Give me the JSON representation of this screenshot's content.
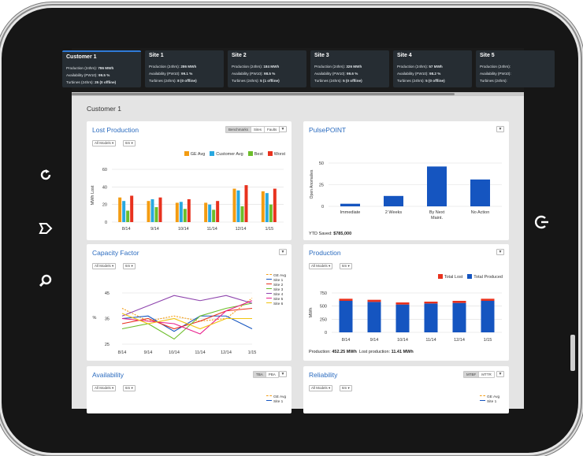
{
  "sites": [
    {
      "name": "Customer 1",
      "production": "786 MWh",
      "availability": "99.5 %",
      "turbines": "25 (0 offline)"
    },
    {
      "name": "Site 1",
      "production": "286 MWh",
      "availability": "99.1 %",
      "turbines": "8 (0 offline)"
    },
    {
      "name": "Site 2",
      "production": "184 MWh",
      "availability": "98.5 %",
      "turbines": "5 (1 offline)"
    },
    {
      "name": "Site 3",
      "production": "326 MWh",
      "availability": "99.6 %",
      "turbines": "5 (0 offline)"
    },
    {
      "name": "Site 4",
      "production": "57 MWh",
      "availability": "98.2 %",
      "turbines": "5 (0 offline)"
    },
    {
      "name": "Site 5",
      "production": "",
      "availability": "",
      "turbines": ""
    }
  ],
  "site_labels": {
    "production": "Production (24hrs):",
    "availability": "Availability (PW10):",
    "turbines": "Turbines (24hrs):"
  },
  "page_title": "Customer 1",
  "lost_production": {
    "title": "Lost Production",
    "tabs": [
      "Benchmarks",
      "Sites",
      "Faults"
    ],
    "filter_models": "All Models",
    "filter_period": "6m",
    "ylabel": "MWh Lost",
    "legend": [
      "GE Avg",
      "Customer Avg",
      "Best",
      "Worst"
    ]
  },
  "pulsepoint": {
    "title": "PulsePOINT",
    "ylabel": "Open Anomalies",
    "footer_label": "YTD Saved:",
    "footer_value": "$785,000"
  },
  "capacity_factor": {
    "title": "Capacity Factor",
    "filter_models": "All Models",
    "filter_period": "6m",
    "ylabel": "%",
    "legend": [
      "GE Avg",
      "Site 1",
      "Site 2",
      "Site 3",
      "Site 4",
      "Site 5",
      "Site 6"
    ]
  },
  "production": {
    "title": "Production",
    "filter_models": "All Models",
    "filter_period": "6m",
    "ylabel": "MWh",
    "legend": [
      "Total Lost",
      "Total Produced"
    ],
    "footer_prod_label": "Production:",
    "footer_prod_value": "452.25 MWh",
    "footer_lost_label": "Lost production:",
    "footer_lost_value": "11.41 MWh"
  },
  "availability": {
    "title": "Availability",
    "tabs": [
      "TBA",
      "PBA"
    ],
    "filter_models": "All Models",
    "filter_period": "6m",
    "legend": [
      "GE Avg",
      "Site 1"
    ]
  },
  "reliability": {
    "title": "Reliability",
    "tabs": [
      "MTBF",
      "MTTR"
    ],
    "filter_models": "All Models",
    "filter_period": "6m",
    "legend": [
      "GE Avg",
      "Site 1"
    ]
  },
  "colors": {
    "ge_avg": "#f39c12",
    "customer_avg": "#29a8e0",
    "best": "#6cbd2a",
    "worst": "#e8321e",
    "produced": "#1555c0",
    "lost": "#e8321e",
    "title_blue": "#2a6bbf"
  },
  "chart_data": [
    {
      "type": "bar",
      "title": "Lost Production",
      "categories": [
        "8/14",
        "9/14",
        "10/14",
        "11/14",
        "12/14",
        "1/15"
      ],
      "series": [
        {
          "name": "GE Avg",
          "values": [
            28,
            24,
            22,
            22,
            38,
            35
          ]
        },
        {
          "name": "Customer Avg",
          "values": [
            24,
            26,
            23,
            20,
            36,
            33
          ]
        },
        {
          "name": "Best",
          "values": [
            13,
            17,
            15,
            14,
            18,
            20
          ]
        },
        {
          "name": "Worst",
          "values": [
            30,
            28,
            26,
            24,
            42,
            38
          ]
        }
      ],
      "ylabel": "MWh Lost",
      "ylim": [
        0,
        60
      ],
      "yticks": [
        0,
        20,
        40,
        60
      ],
      "legend_position": "top-right"
    },
    {
      "type": "bar",
      "title": "PulsePOINT",
      "categories": [
        "Immediate",
        "2 Weeks",
        "By Next Maint.",
        "No Action"
      ],
      "values": [
        3,
        12,
        46,
        31
      ],
      "ylabel": "Open Anomalies",
      "ylim": [
        0,
        50
      ],
      "yticks": [
        0,
        25,
        50
      ]
    },
    {
      "type": "line",
      "title": "Capacity Factor",
      "x": [
        "8/14",
        "9/14",
        "10/14",
        "11/14",
        "12/14",
        "1/15"
      ],
      "series": [
        {
          "name": "GE Avg",
          "values": [
            39,
            34,
            36,
            34,
            35,
            43
          ]
        },
        {
          "name": "Site 1",
          "values": [
            35,
            36,
            30,
            36,
            36,
            31
          ]
        },
        {
          "name": "Site 2",
          "values": [
            33,
            35,
            31,
            34,
            38,
            39
          ]
        },
        {
          "name": "Site 3",
          "values": [
            31,
            33,
            27,
            36,
            39,
            41
          ]
        },
        {
          "name": "Site 4",
          "values": [
            36,
            40,
            44,
            42,
            44,
            41
          ]
        },
        {
          "name": "Site 5",
          "values": [
            35,
            34,
            33,
            29,
            38,
            42
          ]
        },
        {
          "name": "Site 6",
          "values": [
            37,
            33,
            35,
            31,
            35,
            35
          ]
        }
      ],
      "ylabel": "%",
      "ylim": [
        25,
        45
      ],
      "yticks": [
        25,
        35,
        45
      ],
      "legend_position": "top-right"
    },
    {
      "type": "bar",
      "title": "Production",
      "categories": [
        "8/14",
        "9/14",
        "10/14",
        "11/14",
        "12/14",
        "1/15"
      ],
      "series": [
        {
          "name": "Total Produced",
          "values": [
            600,
            580,
            530,
            550,
            560,
            600
          ]
        },
        {
          "name": "Total Lost",
          "values": [
            40,
            40,
            40,
            35,
            40,
            40
          ]
        }
      ],
      "ylabel": "MWh",
      "ylim": [
        0,
        750
      ],
      "yticks": [
        0,
        250,
        500,
        750
      ],
      "legend_position": "top-right"
    }
  ]
}
